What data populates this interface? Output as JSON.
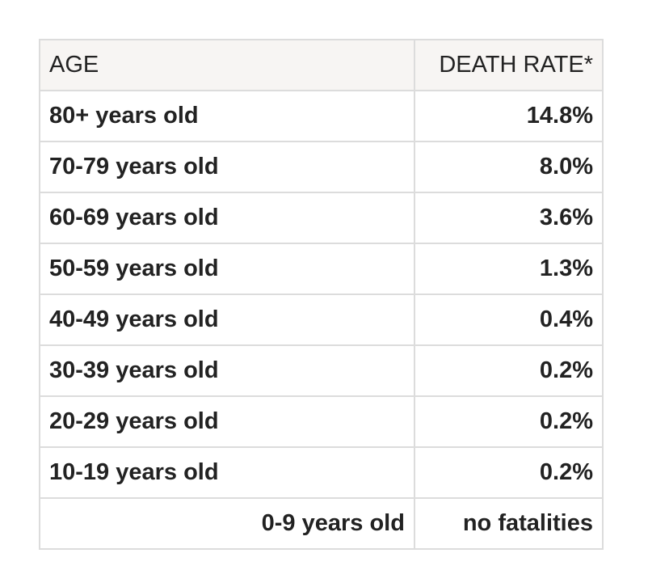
{
  "table": {
    "headers": {
      "age": "AGE",
      "death_rate": "DEATH RATE*"
    },
    "rows": [
      {
        "age": "80+ years old",
        "rate": "14.8%",
        "age_align": "left"
      },
      {
        "age": "70-79 years old",
        "rate": "8.0%",
        "age_align": "left"
      },
      {
        "age": "60-69 years old",
        "rate": "3.6%",
        "age_align": "left"
      },
      {
        "age": "50-59 years old",
        "rate": "1.3%",
        "age_align": "left"
      },
      {
        "age": "40-49 years old",
        "rate": "0.4%",
        "age_align": "left"
      },
      {
        "age": "30-39 years old",
        "rate": "0.2%",
        "age_align": "left"
      },
      {
        "age": "20-29 years old",
        "rate": "0.2%",
        "age_align": "left"
      },
      {
        "age": "10-19 years old",
        "rate": "0.2%",
        "age_align": "left"
      },
      {
        "age": "0-9 years old",
        "rate": "no fatalities",
        "age_align": "right"
      }
    ]
  },
  "colors": {
    "header_bg": "#f7f5f3",
    "border": "#dcdcdc",
    "text": "#222222"
  }
}
